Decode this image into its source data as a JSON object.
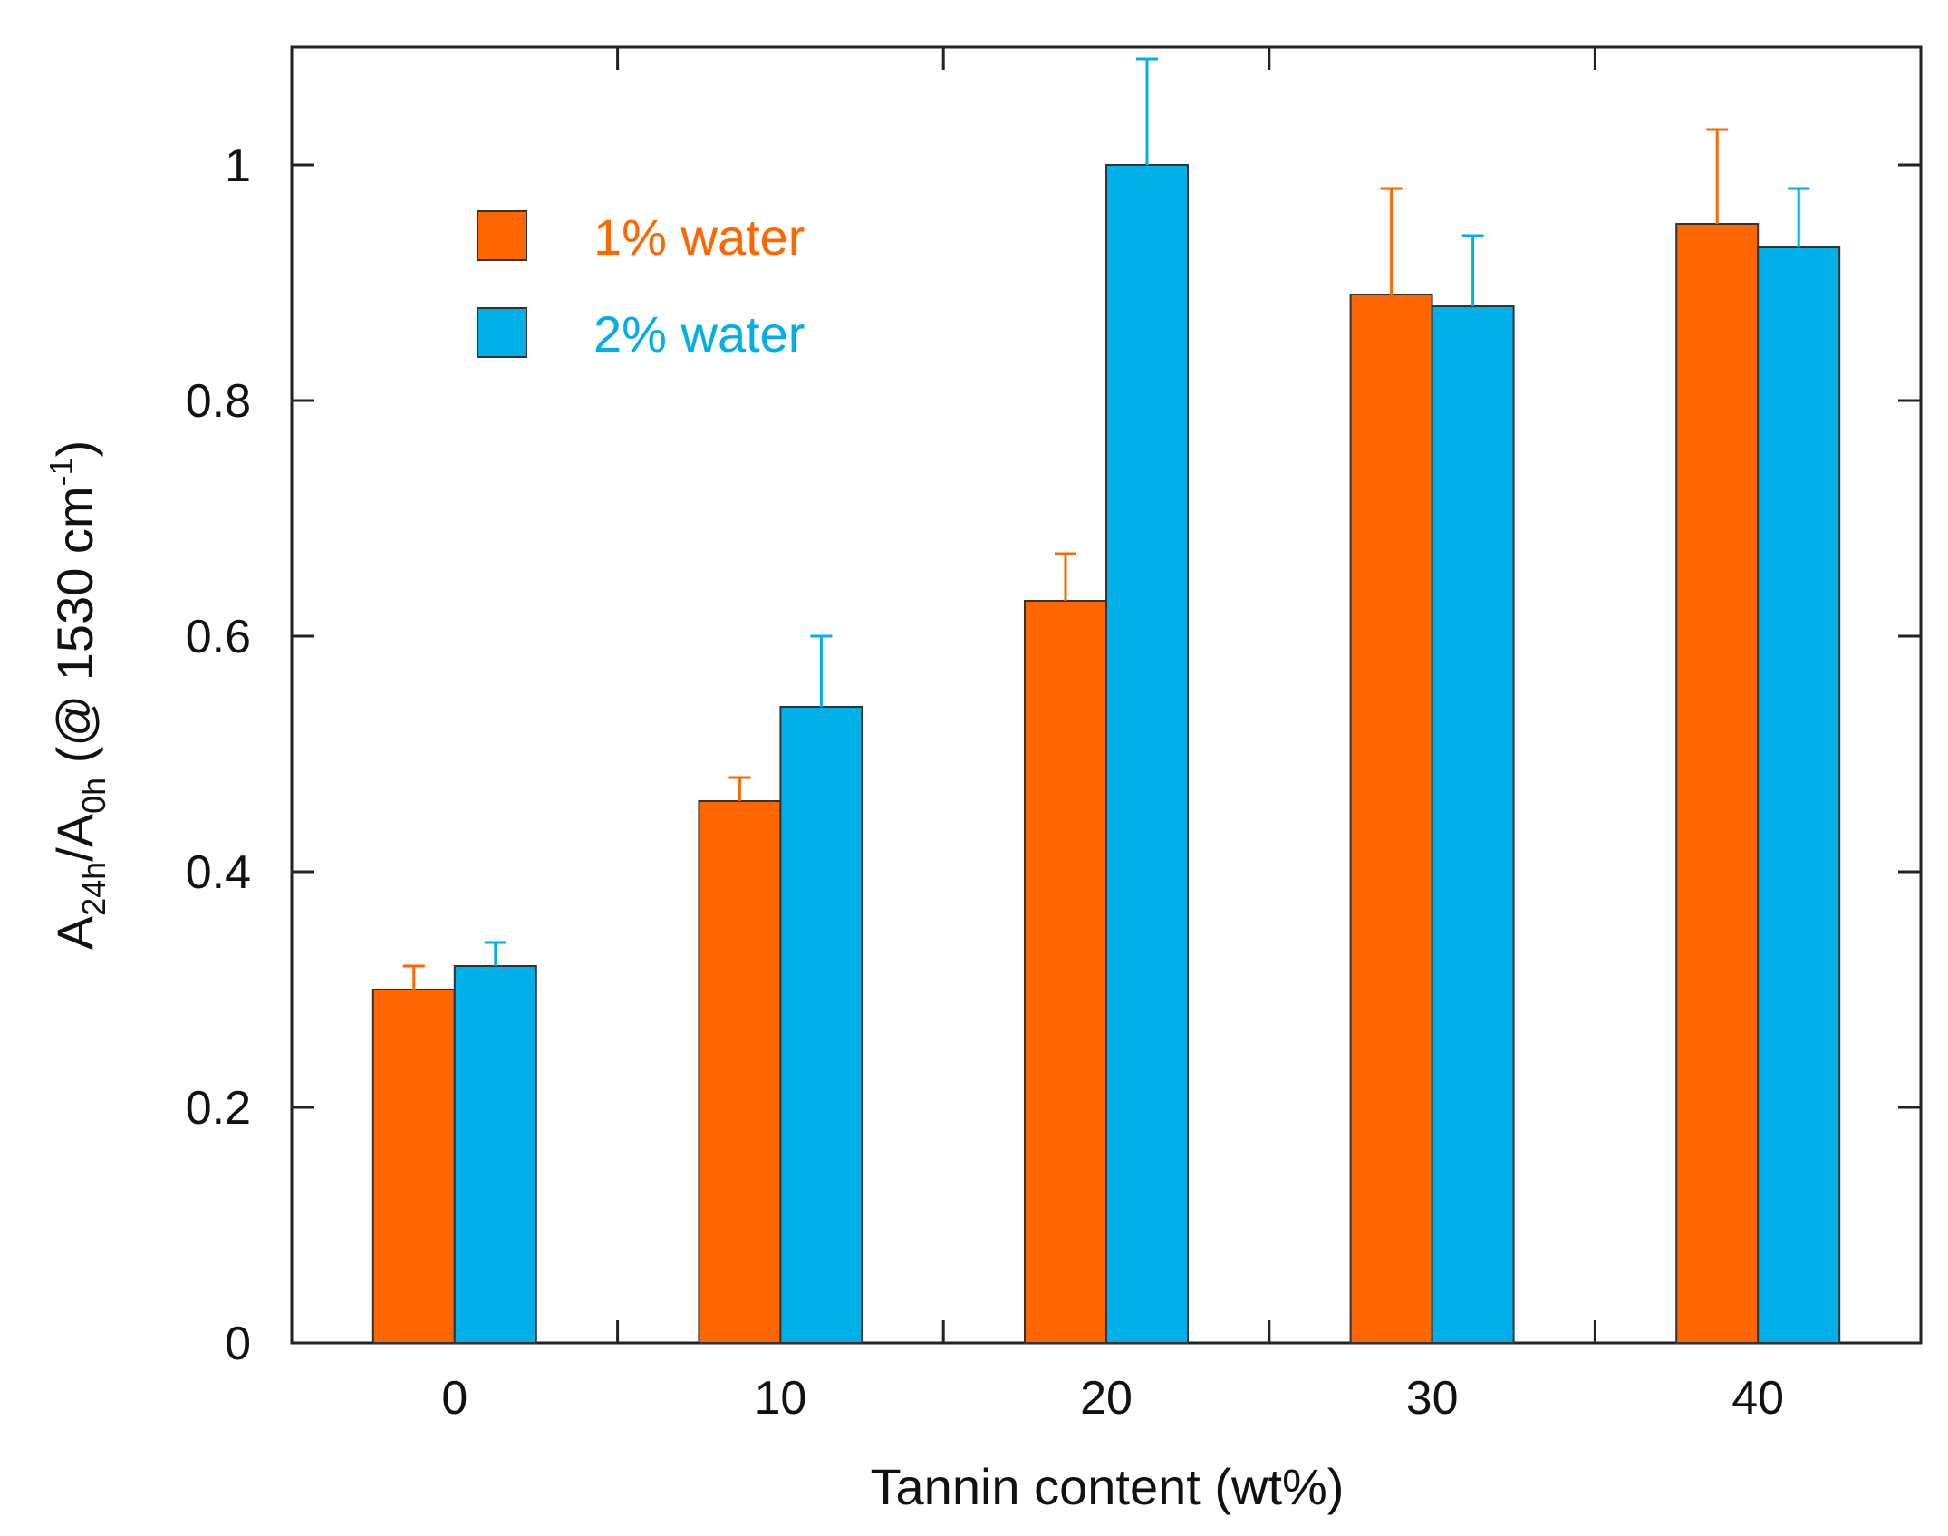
{
  "chart_data": {
    "type": "bar",
    "title": "",
    "categories": [
      "0",
      "10",
      "20",
      "30",
      "40"
    ],
    "series": [
      {
        "name": "1% water",
        "color": "#ff6600",
        "values": [
          0.3,
          0.46,
          0.63,
          0.89,
          0.95
        ],
        "errors": [
          0.02,
          0.02,
          0.04,
          0.09,
          0.08
        ]
      },
      {
        "name": "2% water",
        "color": "#00aee8",
        "values": [
          0.32,
          0.54,
          1.0,
          0.88,
          0.93
        ],
        "errors": [
          0.02,
          0.06,
          0.09,
          0.06,
          0.05
        ]
      }
    ],
    "xlabel": "Tannin content (wt%)",
    "ylabel": {
      "A": "A",
      "sub1": "24h",
      "slash": "/A",
      "sub2": "0h",
      "paren": " (@ 1530 cm",
      "sup": "-1",
      "close": ")"
    },
    "ylim": [
      0,
      1.1
    ],
    "yticks": [
      0,
      0.2,
      0.4,
      0.6,
      0.8,
      1
    ],
    "ytick_labels": [
      "0",
      "0.2",
      "0.4",
      "0.6",
      "0.8",
      "1"
    ],
    "legend_position": "top-left",
    "grid": false
  }
}
